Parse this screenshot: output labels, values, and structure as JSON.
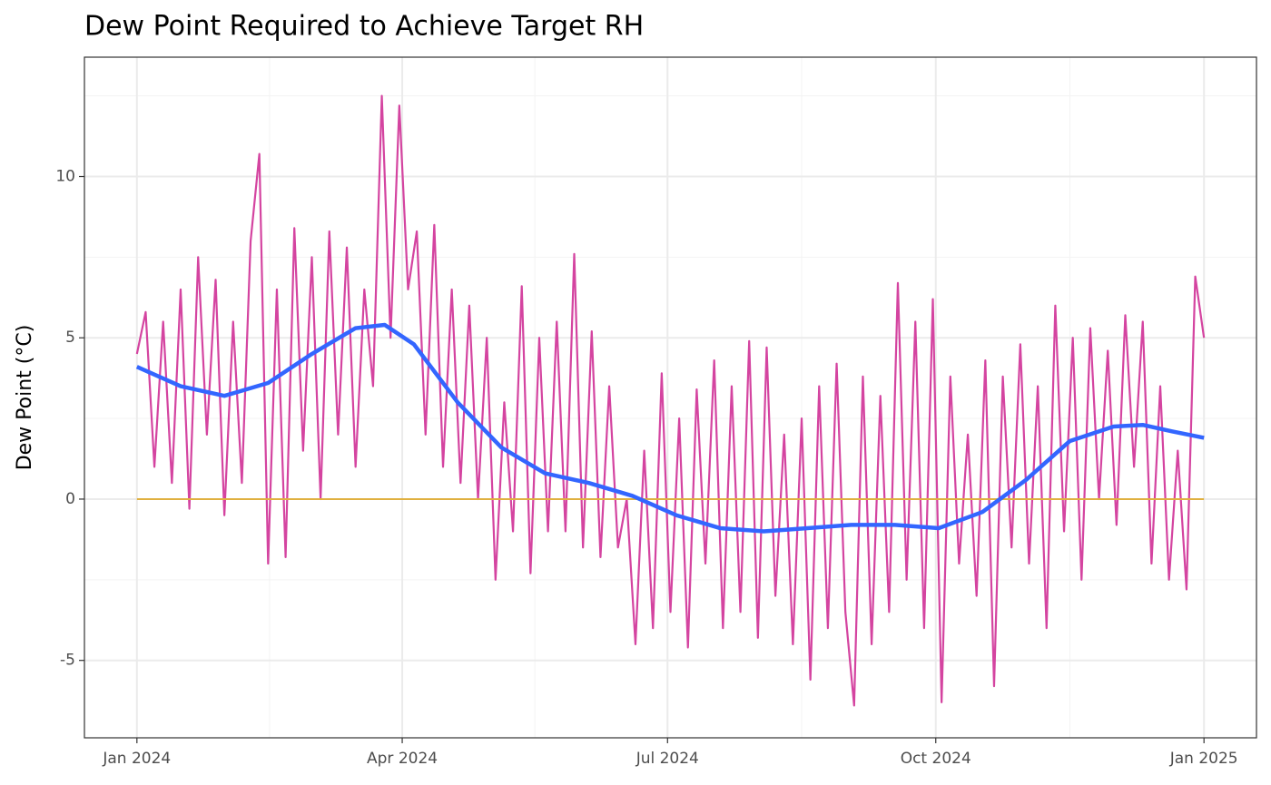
{
  "chart_data": {
    "type": "line",
    "title": "Dew Point Required to Achieve Target RH",
    "ylabel": "Dew Point (°C)",
    "xlim": [
      -18,
      384
    ],
    "ylim": [
      -7.4,
      13.7
    ],
    "xticks": [
      {
        "value": 0,
        "label": "Jan 2024"
      },
      {
        "value": 91,
        "label": "Apr 2024"
      },
      {
        "value": 182,
        "label": "Jul 2024"
      },
      {
        "value": 274,
        "label": "Oct 2024"
      },
      {
        "value": 366,
        "label": "Jan 2025"
      }
    ],
    "xminorticks": [
      45.5,
      136.5,
      228,
      320
    ],
    "yticks": [
      -5,
      0,
      5,
      10
    ],
    "yminorticks": [
      -2.5,
      2.5,
      7.5,
      12.5
    ],
    "grid": true,
    "series": [
      {
        "color": "#d444a0",
        "x": [
          0,
          3,
          6,
          9,
          12,
          15,
          18,
          21,
          24,
          27,
          30,
          33,
          36,
          39,
          42,
          45,
          48,
          51,
          54,
          57,
          60,
          63,
          66,
          69,
          72,
          75,
          78,
          81,
          84,
          87,
          90,
          93,
          96,
          99,
          102,
          105,
          108,
          111,
          114,
          117,
          120,
          123,
          126,
          129,
          132,
          135,
          138,
          141,
          144,
          147,
          150,
          153,
          156,
          159,
          162,
          165,
          168,
          171,
          174,
          177,
          180,
          183,
          186,
          189,
          192,
          195,
          198,
          201,
          204,
          207,
          210,
          213,
          216,
          219,
          222,
          225,
          228,
          231,
          234,
          237,
          240,
          243,
          246,
          249,
          252,
          255,
          258,
          261,
          264,
          267,
          270,
          273,
          276,
          279,
          282,
          285,
          288,
          291,
          294,
          297,
          300,
          303,
          306,
          309,
          312,
          315,
          318,
          321,
          324,
          327,
          330,
          333,
          336,
          339,
          342,
          345,
          348,
          351,
          354,
          357,
          360,
          363,
          366
        ],
        "values": [
          4.5,
          5.8,
          1.0,
          5.5,
          0.5,
          6.5,
          -0.3,
          7.5,
          2,
          6.8,
          -0.5,
          5.5,
          0.5,
          8.0,
          10.7,
          -2.0,
          6.5,
          -1.8,
          8.4,
          1.5,
          7.5,
          0,
          8.3,
          2,
          7.8,
          1,
          6.5,
          3.5,
          12.5,
          5,
          12.2,
          6.5,
          8.3,
          2,
          8.5,
          1,
          6.5,
          0.5,
          6,
          0,
          5,
          -2.5,
          3,
          -1,
          6.6,
          -2.3,
          5,
          -1,
          5.5,
          -1,
          7.6,
          -1.5,
          5.2,
          -1.8,
          3.5,
          -1.5,
          0,
          -4.5,
          1.5,
          -4,
          3.9,
          -3.5,
          2.5,
          -4.6,
          3.4,
          -2,
          4.3,
          -4,
          3.5,
          -3.5,
          4.9,
          -4.3,
          4.7,
          -3,
          2,
          -4.5,
          2.5,
          -5.6,
          3.5,
          -4,
          4.2,
          -3.5,
          -6.4,
          3.8,
          -4.5,
          3.2,
          -3.5,
          6.7,
          -2.5,
          5.5,
          -4,
          6.2,
          -6.3,
          3.8,
          -2,
          2,
          -3,
          4.3,
          -5.8,
          3.8,
          -1.5,
          4.8,
          -2,
          3.5,
          -4,
          6.0,
          -1,
          5,
          -2.5,
          5.3,
          0,
          4.6,
          -0.8,
          5.7,
          1,
          5.5,
          -2,
          3.5,
          -2.5,
          1.5,
          -2.8,
          6.9,
          5.0
        ]
      },
      {
        "color": "#e0b040",
        "x": [
          0,
          366
        ],
        "values": [
          0,
          0
        ]
      },
      {
        "color": "#3366ff",
        "x": [
          0,
          15,
          30,
          45,
          60,
          75,
          85,
          95,
          110,
          125,
          140,
          155,
          170,
          185,
          200,
          215,
          230,
          245,
          260,
          275,
          290,
          305,
          320,
          335,
          345,
          355,
          366
        ],
        "values": [
          4.1,
          3.5,
          3.2,
          3.6,
          4.5,
          5.3,
          5.4,
          4.8,
          3.0,
          1.6,
          0.8,
          0.5,
          0.1,
          -0.5,
          -0.9,
          -1.0,
          -0.9,
          -0.8,
          -0.8,
          -0.9,
          -0.4,
          0.6,
          1.8,
          2.25,
          2.3,
          2.1,
          1.9
        ]
      }
    ]
  }
}
